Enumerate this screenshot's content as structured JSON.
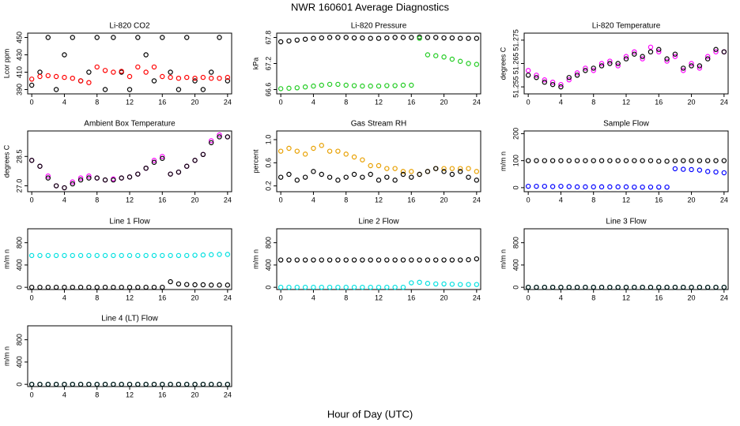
{
  "page": {
    "title": "NWR  160601  Average Diagnostics",
    "xlabel": "Hour of Day (UTC)"
  },
  "chart_data": [
    {
      "type": "scatter",
      "title": "Li-820 CO2",
      "ylabel": "Lcor ppm",
      "xlim": [
        -0.5,
        24.5
      ],
      "xticks": [
        0,
        4,
        8,
        12,
        16,
        20,
        24
      ],
      "ylim": [
        385,
        455
      ],
      "yticks": [
        390,
        410,
        430,
        450
      ],
      "x": [
        0,
        1,
        2,
        3,
        4,
        5,
        6,
        7,
        8,
        9,
        10,
        11,
        12,
        13,
        14,
        15,
        16,
        17,
        18,
        19,
        20,
        21,
        22,
        23,
        24
      ],
      "series": [
        {
          "color": "#000000",
          "values": [
            395,
            410,
            450,
            390,
            430,
            450,
            400,
            410,
            450,
            390,
            450,
            410,
            390,
            450,
            430,
            400,
            450,
            410,
            390,
            450,
            400,
            390,
            410,
            450,
            400
          ]
        },
        {
          "color": "#ff0000",
          "values": [
            402,
            405,
            406,
            405,
            404,
            403,
            400,
            398,
            416,
            412,
            410,
            411,
            405,
            416,
            410,
            416,
            405,
            404,
            403,
            404,
            403,
            404,
            403,
            403,
            404
          ]
        }
      ]
    },
    {
      "type": "scatter",
      "title": "Li-820 Pressure",
      "ylabel": "kPa",
      "xlim": [
        -0.5,
        24.5
      ],
      "xticks": [
        0,
        4,
        8,
        12,
        16,
        20,
        24
      ],
      "ylim": [
        66.5,
        67.9
      ],
      "yticks": [
        66.6,
        67.2,
        67.8
      ],
      "x": [
        0,
        1,
        2,
        3,
        4,
        5,
        6,
        7,
        8,
        9,
        10,
        11,
        12,
        13,
        14,
        15,
        16,
        17,
        18,
        19,
        20,
        21,
        22,
        23,
        24
      ],
      "series": [
        {
          "color": "#000000",
          "values": [
            67.7,
            67.72,
            67.74,
            67.76,
            67.78,
            67.79,
            67.8,
            67.8,
            67.8,
            67.79,
            67.79,
            67.78,
            67.78,
            67.79,
            67.8,
            67.8,
            67.8,
            67.81,
            67.8,
            67.8,
            67.79,
            67.79,
            67.78,
            67.78,
            67.78
          ]
        },
        {
          "color": "#22cc22",
          "values": [
            66.62,
            66.63,
            66.64,
            66.66,
            66.68,
            66.7,
            66.72,
            66.72,
            66.7,
            66.69,
            66.68,
            66.68,
            66.68,
            66.69,
            66.69,
            66.7,
            66.7,
            67.78,
            67.4,
            67.38,
            67.35,
            67.3,
            67.25,
            67.2,
            67.18
          ]
        }
      ]
    },
    {
      "type": "scatter",
      "title": "Li-820 Temperature",
      "ylabel": "degrees C",
      "xlim": [
        -0.5,
        24.5
      ],
      "xticks": [
        0,
        4,
        8,
        12,
        16,
        20,
        24
      ],
      "ylim": [
        51.252,
        51.278
      ],
      "yticks": [
        51.255,
        51.265,
        51.275
      ],
      "x": [
        0,
        1,
        2,
        3,
        4,
        5,
        6,
        7,
        8,
        9,
        10,
        11,
        12,
        13,
        14,
        15,
        16,
        17,
        18,
        19,
        20,
        21,
        22,
        23,
        24
      ],
      "series": [
        {
          "color": "#ff00ff",
          "values": [
            51.262,
            51.26,
            51.258,
            51.257,
            51.256,
            51.258,
            51.261,
            51.263,
            51.262,
            51.265,
            51.266,
            51.264,
            51.268,
            51.27,
            51.267,
            51.272,
            51.27,
            51.266,
            51.268,
            51.262,
            51.265,
            51.263,
            51.268,
            51.27,
            51.27
          ]
        },
        {
          "color": "#000000",
          "values": [
            51.26,
            51.259,
            51.257,
            51.256,
            51.255,
            51.259,
            51.26,
            51.262,
            51.263,
            51.264,
            51.265,
            51.265,
            51.267,
            51.269,
            51.268,
            51.27,
            51.271,
            51.267,
            51.269,
            51.263,
            51.264,
            51.264,
            51.267,
            51.271,
            51.27
          ]
        }
      ]
    },
    {
      "type": "scatter",
      "title": "Ambient Box Temperature",
      "ylabel": "degrees C",
      "xlim": [
        -0.5,
        24.5
      ],
      "xticks": [
        0,
        4,
        8,
        12,
        16,
        20,
        24
      ],
      "ylim": [
        26.7,
        29.8
      ],
      "yticks": [
        {
          "value": 27,
          "label": "27.0"
        },
        28.5
      ],
      "x": [
        0,
        1,
        2,
        3,
        4,
        5,
        6,
        7,
        8,
        9,
        10,
        11,
        12,
        13,
        14,
        15,
        16,
        17,
        18,
        19,
        20,
        21,
        22,
        23,
        24
      ],
      "series": [
        {
          "color": "#ff00ff",
          "values": [
            28.3,
            28.0,
            27.5,
            27.0,
            26.9,
            27.2,
            27.4,
            27.5,
            27.4,
            27.3,
            27.35,
            27.4,
            27.45,
            27.6,
            27.9,
            28.3,
            28.5,
            27.6,
            27.7,
            28.0,
            28.3,
            28.6,
            29.3,
            29.6,
            29.5
          ]
        },
        {
          "color": "#000000",
          "values": [
            28.3,
            28.0,
            27.4,
            27.0,
            26.9,
            27.1,
            27.3,
            27.4,
            27.4,
            27.3,
            27.3,
            27.4,
            27.45,
            27.6,
            27.9,
            28.2,
            28.4,
            27.6,
            27.7,
            28.0,
            28.3,
            28.6,
            29.2,
            29.5,
            29.5
          ]
        }
      ]
    },
    {
      "type": "scatter",
      "title": "Gas Stream RH",
      "ylabel": "percent",
      "xlim": [
        -0.5,
        24.5
      ],
      "xticks": [
        0,
        4,
        8,
        12,
        16,
        20,
        24
      ],
      "ylim": [
        0.1,
        1.15
      ],
      "yticks": [
        0.2,
        0.6,
        {
          "value": 1,
          "label": "1.0"
        }
      ],
      "x": [
        0,
        1,
        2,
        3,
        4,
        5,
        6,
        7,
        8,
        9,
        10,
        11,
        12,
        13,
        14,
        15,
        16,
        17,
        18,
        19,
        20,
        21,
        22,
        23,
        24
      ],
      "series": [
        {
          "color": "#e8a000",
          "values": [
            0.8,
            0.85,
            0.8,
            0.75,
            0.85,
            0.9,
            0.8,
            0.8,
            0.75,
            0.7,
            0.65,
            0.55,
            0.55,
            0.5,
            0.5,
            0.45,
            0.45,
            0.4,
            0.45,
            0.5,
            0.5,
            0.5,
            0.5,
            0.5,
            0.45
          ]
        },
        {
          "color": "#000000",
          "values": [
            0.35,
            0.4,
            0.3,
            0.35,
            0.45,
            0.4,
            0.35,
            0.3,
            0.35,
            0.4,
            0.35,
            0.4,
            0.3,
            0.35,
            0.3,
            0.4,
            0.35,
            0.4,
            0.45,
            0.5,
            0.45,
            0.4,
            0.45,
            0.35,
            0.3
          ]
        }
      ]
    },
    {
      "type": "scatter",
      "title": "Sample Flow",
      "ylabel": "m/m n",
      "xlim": [
        -0.5,
        24.5
      ],
      "xticks": [
        0,
        4,
        8,
        12,
        16,
        20,
        24
      ],
      "ylim": [
        -15,
        210
      ],
      "yticks": [
        0,
        100,
        200
      ],
      "x": [
        0,
        1,
        2,
        3,
        4,
        5,
        6,
        7,
        8,
        9,
        10,
        11,
        12,
        13,
        14,
        15,
        16,
        17,
        18,
        19,
        20,
        21,
        22,
        23,
        24
      ],
      "series": [
        {
          "color": "#000000",
          "values": [
            100,
            100,
            100,
            100,
            100,
            100,
            100,
            100,
            100,
            100,
            100,
            100,
            100,
            100,
            100,
            100,
            98,
            98,
            100,
            100,
            100,
            100,
            100,
            100,
            100
          ]
        },
        {
          "color": "#0000ff",
          "values": [
            5,
            5,
            5,
            4,
            5,
            4,
            3,
            3,
            3,
            3,
            3,
            3,
            3,
            2,
            2,
            2,
            2,
            2,
            70,
            68,
            67,
            65,
            60,
            58,
            55
          ]
        }
      ]
    },
    {
      "type": "scatter",
      "title": "Line 1 Flow",
      "ylabel": "m/m n",
      "xlim": [
        -0.5,
        24.5
      ],
      "xticks": [
        0,
        4,
        8,
        12,
        16,
        20,
        24
      ],
      "ylim": [
        -40,
        1050
      ],
      "yticks": [
        0,
        400,
        800
      ],
      "x": [
        0,
        1,
        2,
        3,
        4,
        5,
        6,
        7,
        8,
        9,
        10,
        11,
        12,
        13,
        14,
        15,
        16,
        17,
        18,
        19,
        20,
        21,
        22,
        23,
        24
      ],
      "series": [
        {
          "color": "#00e0e0",
          "values": [
            570,
            570,
            570,
            570,
            570,
            570,
            570,
            570,
            570,
            570,
            570,
            570,
            570,
            570,
            570,
            570,
            570,
            570,
            570,
            570,
            575,
            580,
            585,
            590,
            590
          ]
        },
        {
          "color": "#000000",
          "values": [
            0,
            0,
            0,
            0,
            0,
            0,
            0,
            0,
            0,
            0,
            0,
            0,
            0,
            0,
            0,
            0,
            0,
            100,
            60,
            50,
            45,
            45,
            40,
            40,
            40
          ]
        }
      ]
    },
    {
      "type": "scatter",
      "title": "Line 2 Flow",
      "ylabel": "m/m n",
      "xlim": [
        -0.5,
        24.5
      ],
      "xticks": [
        0,
        4,
        8,
        12,
        16,
        20,
        24
      ],
      "ylim": [
        -40,
        1050
      ],
      "yticks": [
        0,
        400,
        800
      ],
      "x": [
        0,
        1,
        2,
        3,
        4,
        5,
        6,
        7,
        8,
        9,
        10,
        11,
        12,
        13,
        14,
        15,
        16,
        17,
        18,
        19,
        20,
        21,
        22,
        23,
        24
      ],
      "series": [
        {
          "color": "#00e0e0",
          "values": [
            0,
            0,
            0,
            0,
            0,
            0,
            0,
            0,
            0,
            0,
            0,
            0,
            0,
            0,
            0,
            0,
            80,
            90,
            70,
            60,
            60,
            55,
            50,
            50,
            50
          ]
        },
        {
          "color": "#000000",
          "values": [
            490,
            490,
            490,
            490,
            490,
            490,
            490,
            490,
            490,
            490,
            490,
            490,
            490,
            490,
            490,
            490,
            490,
            490,
            490,
            490,
            490,
            490,
            490,
            495,
            510
          ]
        }
      ]
    },
    {
      "type": "scatter",
      "title": "Line 3 Flow",
      "ylabel": "m/m n",
      "xlim": [
        -0.5,
        24.5
      ],
      "xticks": [
        0,
        4,
        8,
        12,
        16,
        20,
        24
      ],
      "ylim": [
        -40,
        1050
      ],
      "yticks": [
        0,
        400,
        800
      ],
      "x": [
        0,
        1,
        2,
        3,
        4,
        5,
        6,
        7,
        8,
        9,
        10,
        11,
        12,
        13,
        14,
        15,
        16,
        17,
        18,
        19,
        20,
        21,
        22,
        23,
        24
      ],
      "series": [
        {
          "color": "#00e0e0",
          "values": [
            0,
            0,
            0,
            0,
            0,
            0,
            0,
            0,
            0,
            0,
            0,
            0,
            0,
            0,
            0,
            0,
            0,
            0,
            0,
            0,
            0,
            0,
            0,
            0,
            0
          ]
        },
        {
          "color": "#000000",
          "values": [
            0,
            0,
            0,
            0,
            0,
            0,
            0,
            0,
            0,
            0,
            0,
            0,
            0,
            0,
            0,
            0,
            0,
            0,
            0,
            0,
            0,
            0,
            0,
            0,
            0
          ]
        }
      ]
    },
    {
      "type": "scatter",
      "title": "Line 4 (LT) Flow",
      "ylabel": "m/m n",
      "xlim": [
        -0.5,
        24.5
      ],
      "xticks": [
        0,
        4,
        8,
        12,
        16,
        20,
        24
      ],
      "ylim": [
        -40,
        1050
      ],
      "yticks": [
        0,
        400,
        800
      ],
      "x": [
        0,
        1,
        2,
        3,
        4,
        5,
        6,
        7,
        8,
        9,
        10,
        11,
        12,
        13,
        14,
        15,
        16,
        17,
        18,
        19,
        20,
        21,
        22,
        23,
        24
      ],
      "series": [
        {
          "color": "#00e0e0",
          "values": [
            0,
            0,
            0,
            0,
            0,
            0,
            0,
            0,
            0,
            0,
            0,
            0,
            0,
            0,
            0,
            0,
            0,
            0,
            0,
            0,
            0,
            0,
            0,
            0,
            0
          ]
        },
        {
          "color": "#000000",
          "values": [
            0,
            0,
            0,
            0,
            0,
            0,
            0,
            0,
            0,
            0,
            0,
            0,
            0,
            0,
            0,
            0,
            0,
            0,
            0,
            0,
            0,
            0,
            0,
            0,
            0
          ]
        }
      ]
    }
  ]
}
